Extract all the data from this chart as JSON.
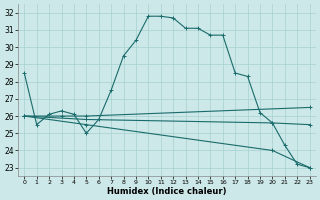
{
  "xlabel": "Humidex (Indice chaleur)",
  "bg_color": "#cce8e8",
  "grid_color": "#a8d0d0",
  "line_color": "#1a6b6b",
  "xlim": [
    -0.5,
    23.5
  ],
  "ylim": [
    22.5,
    32.5
  ],
  "yticks": [
    23,
    24,
    25,
    26,
    27,
    28,
    29,
    30,
    31,
    32
  ],
  "xticks": [
    0,
    1,
    2,
    3,
    4,
    5,
    6,
    7,
    8,
    9,
    10,
    11,
    12,
    13,
    14,
    15,
    16,
    17,
    18,
    19,
    20,
    21,
    22,
    23
  ],
  "line1_x": [
    0,
    1,
    2,
    3,
    4,
    5,
    6,
    7,
    8,
    9,
    10,
    11,
    12,
    13,
    14,
    15,
    16,
    17,
    18,
    19,
    20,
    21,
    22,
    23
  ],
  "line1_y": [
    28.5,
    25.5,
    26.1,
    26.3,
    26.1,
    25.0,
    25.8,
    27.5,
    29.5,
    30.4,
    31.8,
    31.8,
    31.7,
    31.1,
    31.1,
    30.7,
    30.7,
    28.5,
    28.3,
    26.2,
    25.6,
    24.3,
    23.2,
    23.0
  ],
  "line2_x": [
    0,
    3,
    5,
    23
  ],
  "line2_y": [
    26.0,
    26.0,
    26.0,
    26.5
  ],
  "line3_x": [
    0,
    5,
    20,
    23
  ],
  "line3_y": [
    26.0,
    25.8,
    25.6,
    25.5
  ],
  "line4_x": [
    0,
    5,
    20,
    23
  ],
  "line4_y": [
    26.0,
    25.5,
    24.0,
    23.0
  ]
}
